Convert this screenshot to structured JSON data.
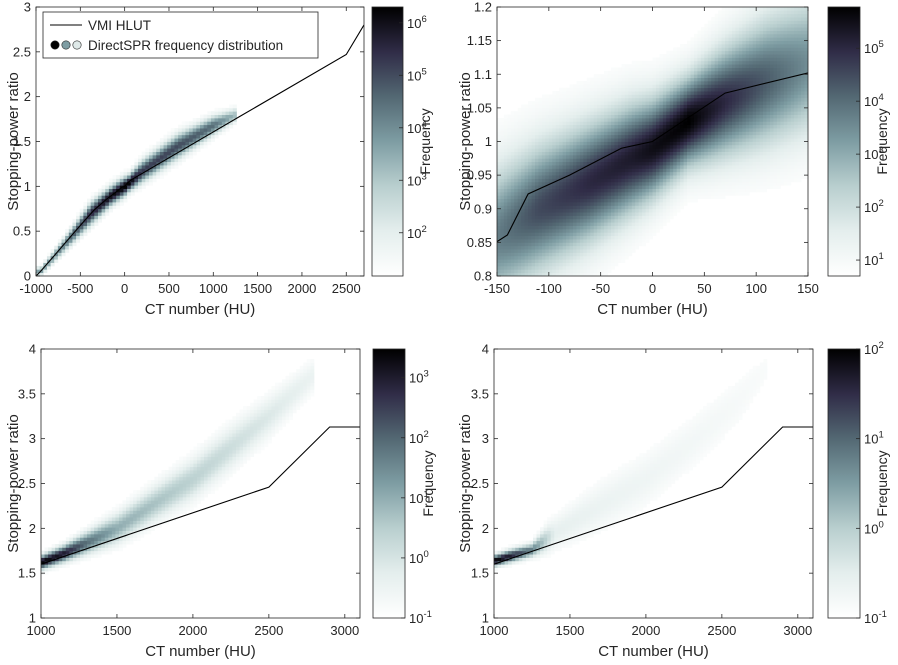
{
  "colors": {
    "colormap": [
      "#ffffff",
      "#e4eeed",
      "#b9cfcf",
      "#7e9da3",
      "#536873",
      "#302c47",
      "#000000"
    ],
    "hlut_line": "#000000",
    "axis": "#262626"
  },
  "legend": {
    "line_label": "VMI HLUT",
    "dist_label": "DirectSPR frequency distribution"
  },
  "chart_data": [
    {
      "type": "heatmap",
      "panel": "top-left",
      "xlabel": "CT number (HU)",
      "ylabel": "Stopping-power ratio",
      "colorbar_label": "Frequency",
      "xlim": [
        -1000,
        2700
      ],
      "ylim": [
        0,
        3
      ],
      "xticks": [
        -1000,
        -500,
        0,
        500,
        1000,
        1500,
        2000,
        2500
      ],
      "xtick_labels": [
        "-1000",
        "-500",
        "0",
        "500",
        "1000",
        "1500",
        "2000",
        "2500"
      ],
      "yticks": [
        0,
        0.5,
        1,
        1.5,
        2,
        2.5,
        3
      ],
      "ytick_labels": [
        "0",
        "0.5",
        "1",
        "1.5",
        "2",
        "2.5",
        "3"
      ],
      "colorbar": {
        "scale": "log",
        "range": [
          15,
          2000000
        ],
        "ticks": [
          100,
          1000,
          10000,
          100000,
          1000000
        ],
        "tick_exp": [
          "2",
          "3",
          "4",
          "5",
          "6"
        ]
      },
      "legend_position": "top-left",
      "series": [
        {
          "name": "VMI HLUT",
          "kind": "line",
          "x": [
            -1000,
            -950,
            -800,
            -600,
            -450,
            -340,
            -200,
            -120,
            -80,
            -30,
            0,
            35,
            70,
            1300,
            2500,
            2700
          ],
          "y": [
            0.0,
            0.05,
            0.22,
            0.45,
            0.62,
            0.74,
            0.86,
            0.92,
            0.95,
            0.99,
            1.0,
            1.04,
            1.07,
            1.78,
            2.47,
            2.8
          ]
        },
        {
          "name": "DirectSPR frequency distribution",
          "kind": "density",
          "ridge": [
            [
              -950,
              0.05,
              0.03,
              0.5
            ],
            [
              -700,
              0.33,
              0.05,
              0.6
            ],
            [
              -380,
              0.7,
              0.08,
              0.85
            ],
            [
              -150,
              0.9,
              0.07,
              0.95
            ],
            [
              0,
              1.0,
              0.07,
              1.0
            ],
            [
              40,
              1.03,
              0.06,
              1.0
            ],
            [
              200,
              1.17,
              0.08,
              0.8
            ],
            [
              600,
              1.45,
              0.09,
              0.75
            ],
            [
              1000,
              1.68,
              0.07,
              0.65
            ],
            [
              1250,
              1.8,
              0.05,
              0.4
            ]
          ]
        }
      ]
    },
    {
      "type": "heatmap",
      "panel": "top-right",
      "xlabel": "CT number (HU)",
      "ylabel": "Stopping-power ratio",
      "colorbar_label": "Frequency",
      "xlim": [
        -150,
        150
      ],
      "ylim": [
        0.8,
        1.2
      ],
      "xticks": [
        -150,
        -100,
        -50,
        0,
        50,
        100,
        150
      ],
      "xtick_labels": [
        "-150",
        "-100",
        "-50",
        "0",
        "50",
        "100",
        "150"
      ],
      "yticks": [
        0.8,
        0.85,
        0.9,
        0.95,
        1.0,
        1.05,
        1.1,
        1.15,
        1.2
      ],
      "ytick_labels": [
        "0.8",
        "0.85",
        "0.9",
        "0.95",
        "1",
        "1.05",
        "1.1",
        "1.15",
        "1.2"
      ],
      "colorbar": {
        "scale": "log",
        "range": [
          5,
          600000
        ],
        "ticks": [
          10,
          100,
          1000,
          10000,
          100000
        ],
        "tick_exp": [
          "1",
          "2",
          "3",
          "4",
          "5"
        ]
      },
      "series": [
        {
          "name": "VMI HLUT",
          "kind": "line",
          "x": [
            -150,
            -140,
            -120,
            -80,
            -30,
            0,
            70,
            150
          ],
          "y": [
            0.851,
            0.861,
            0.922,
            0.95,
            0.99,
            1.0,
            1.072,
            1.102
          ]
        },
        {
          "name": "DirectSPR frequency distribution",
          "kind": "density",
          "ridge": [
            [
              -150,
              0.86,
              0.07,
              0.6
            ],
            [
              -110,
              0.9,
              0.065,
              0.75
            ],
            [
              -60,
              0.94,
              0.06,
              0.85
            ],
            [
              -20,
              0.975,
              0.055,
              0.9
            ],
            [
              0,
              0.99,
              0.05,
              0.95
            ],
            [
              35,
              1.03,
              0.045,
              1.0
            ],
            [
              70,
              1.06,
              0.055,
              0.85
            ],
            [
              110,
              1.09,
              0.065,
              0.7
            ],
            [
              150,
              1.115,
              0.07,
              0.55
            ]
          ]
        }
      ]
    },
    {
      "type": "heatmap",
      "panel": "bottom-left",
      "xlabel": "CT number (HU)",
      "ylabel": "Stopping-power ratio",
      "colorbar_label": "Frequency",
      "xlim": [
        1000,
        3100
      ],
      "ylim": [
        1,
        4
      ],
      "xticks": [
        1000,
        1500,
        2000,
        2500,
        3000
      ],
      "xtick_labels": [
        "1000",
        "1500",
        "2000",
        "2500",
        "3000"
      ],
      "yticks": [
        1,
        1.5,
        2,
        2.5,
        3,
        3.5,
        4
      ],
      "ytick_labels": [
        "1",
        "1.5",
        "2",
        "2.5",
        "3",
        "3.5",
        "4"
      ],
      "colorbar": {
        "scale": "log",
        "range": [
          0.1,
          3000
        ],
        "ticks": [
          0.1,
          1,
          10,
          100,
          1000
        ],
        "tick_exp": [
          "-1",
          "0",
          "1",
          "2",
          "3"
        ]
      },
      "series": [
        {
          "name": "VMI HLUT",
          "kind": "line",
          "x": [
            1000,
            2500,
            2900,
            3100
          ],
          "y": [
            1.6,
            2.46,
            3.13,
            3.13
          ]
        },
        {
          "name": "DirectSPR frequency distribution",
          "kind": "density",
          "ridge": [
            [
              1000,
              1.62,
              0.05,
              1.0
            ],
            [
              1150,
              1.72,
              0.06,
              0.9
            ],
            [
              1300,
              1.84,
              0.08,
              0.65
            ],
            [
              1500,
              2.0,
              0.11,
              0.45
            ],
            [
              1750,
              2.28,
              0.13,
              0.38
            ],
            [
              2000,
              2.55,
              0.15,
              0.32
            ],
            [
              2250,
              2.9,
              0.16,
              0.26
            ],
            [
              2500,
              3.25,
              0.15,
              0.2
            ],
            [
              2800,
              3.72,
              0.12,
              0.12
            ]
          ]
        }
      ]
    },
    {
      "type": "heatmap",
      "panel": "bottom-right",
      "xlabel": "CT number (HU)",
      "ylabel": "Stopping-power ratio",
      "colorbar_label": "Frequency",
      "xlim": [
        1000,
        3100
      ],
      "ylim": [
        1,
        4
      ],
      "xticks": [
        1000,
        1500,
        2000,
        2500,
        3000
      ],
      "xtick_labels": [
        "1000",
        "1500",
        "2000",
        "2500",
        "3000"
      ],
      "yticks": [
        1,
        1.5,
        2,
        2.5,
        3,
        3.5,
        4
      ],
      "ytick_labels": [
        "1",
        "1.5",
        "2",
        "2.5",
        "3",
        "3.5",
        "4"
      ],
      "colorbar": {
        "scale": "log",
        "range": [
          0.1,
          100
        ],
        "ticks": [
          0.1,
          1,
          10,
          100
        ],
        "tick_exp": [
          "-1",
          "0",
          "1",
          "2"
        ]
      },
      "series": [
        {
          "name": "VMI HLUT",
          "kind": "line",
          "x": [
            1000,
            2500,
            2900,
            3100
          ],
          "y": [
            1.6,
            2.46,
            3.13,
            3.13
          ]
        },
        {
          "name": "DirectSPR frequency distribution",
          "kind": "density",
          "ridge": [
            [
              1000,
              1.64,
              0.04,
              1.0
            ],
            [
              1100,
              1.69,
              0.045,
              0.9
            ],
            [
              1250,
              1.76,
              0.05,
              0.6
            ],
            [
              1400,
              1.95,
              0.12,
              0.15
            ],
            [
              1700,
              2.25,
              0.18,
              0.12
            ],
            [
              2000,
              2.55,
              0.2,
              0.1
            ],
            [
              2300,
              2.95,
              0.2,
              0.08
            ],
            [
              2600,
              3.4,
              0.2,
              0.06
            ],
            [
              2800,
              3.8,
              0.15,
              0.04
            ]
          ]
        }
      ]
    }
  ]
}
